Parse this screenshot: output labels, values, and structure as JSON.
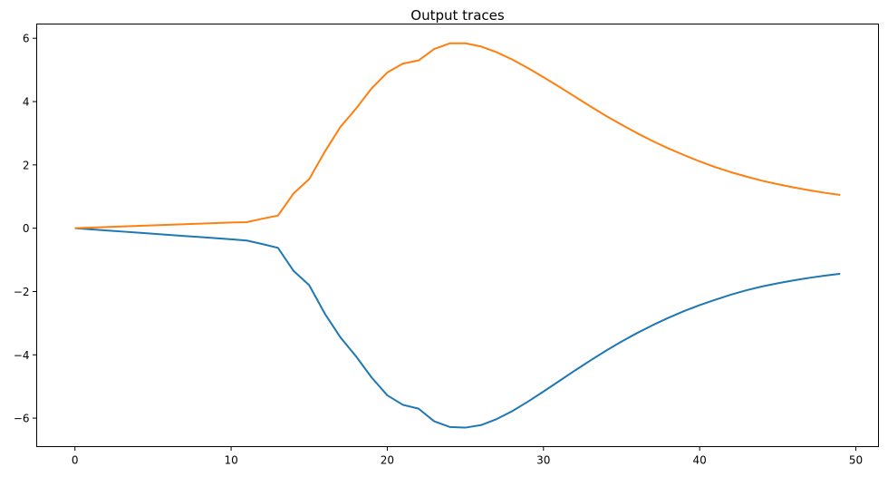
{
  "chart_data": {
    "type": "line",
    "title": "Output traces",
    "xlabel": "",
    "ylabel": "",
    "xlim": [
      -2.45,
      51.45
    ],
    "ylim": [
      -6.9,
      6.45
    ],
    "x_ticks": [
      0,
      10,
      20,
      30,
      40,
      50
    ],
    "x_tick_labels": [
      "0",
      "10",
      "20",
      "30",
      "40",
      "50"
    ],
    "y_ticks": [
      -6,
      -4,
      -2,
      0,
      2,
      4,
      6
    ],
    "y_tick_labels": [
      "−6",
      "−4",
      "−2",
      "0",
      "2",
      "4",
      "6"
    ],
    "grid": false,
    "series": [
      {
        "color": "#1f77b4",
        "x": [
          0,
          1,
          2,
          3,
          4,
          5,
          6,
          7,
          8,
          9,
          10,
          11,
          12,
          13,
          14,
          15,
          16,
          17,
          18,
          19,
          20,
          21,
          22,
          23,
          24,
          25,
          26,
          27,
          28,
          29,
          30,
          31,
          32,
          33,
          34,
          35,
          36,
          37,
          38,
          39,
          40,
          41,
          42,
          43,
          44,
          45,
          46,
          47,
          48,
          49
        ],
        "y": [
          0,
          -0.035,
          -0.07,
          -0.105,
          -0.14,
          -0.175,
          -0.21,
          -0.245,
          -0.28,
          -0.315,
          -0.35,
          -0.39,
          -0.5,
          -0.62,
          -1.35,
          -1.8,
          -2.7,
          -3.45,
          -4.05,
          -4.72,
          -5.28,
          -5.58,
          -5.7,
          -6.1,
          -6.28,
          -6.3,
          -6.22,
          -6.03,
          -5.78,
          -5.48,
          -5.16,
          -4.83,
          -4.5,
          -4.18,
          -3.87,
          -3.58,
          -3.31,
          -3.06,
          -2.83,
          -2.62,
          -2.43,
          -2.26,
          -2.1,
          -1.96,
          -1.84,
          -1.74,
          -1.65,
          -1.57,
          -1.5,
          -1.44
        ]
      },
      {
        "color": "#ff7f0e",
        "x": [
          0,
          1,
          2,
          3,
          4,
          5,
          6,
          7,
          8,
          9,
          10,
          11,
          12,
          13,
          14,
          15,
          16,
          17,
          18,
          19,
          20,
          21,
          22,
          23,
          24,
          25,
          26,
          27,
          28,
          29,
          30,
          31,
          32,
          33,
          34,
          35,
          36,
          37,
          38,
          39,
          40,
          41,
          42,
          43,
          44,
          45,
          46,
          47,
          48,
          49
        ],
        "y": [
          0,
          0.018,
          0.036,
          0.054,
          0.072,
          0.09,
          0.108,
          0.126,
          0.144,
          0.162,
          0.18,
          0.19,
          0.3,
          0.4,
          1.1,
          1.55,
          2.42,
          3.2,
          3.78,
          4.42,
          4.92,
          5.2,
          5.3,
          5.66,
          5.84,
          5.84,
          5.74,
          5.56,
          5.33,
          5.06,
          4.77,
          4.47,
          4.16,
          3.85,
          3.55,
          3.27,
          3.0,
          2.75,
          2.52,
          2.31,
          2.11,
          1.93,
          1.77,
          1.63,
          1.5,
          1.39,
          1.29,
          1.2,
          1.12,
          1.05
        ]
      }
    ]
  }
}
